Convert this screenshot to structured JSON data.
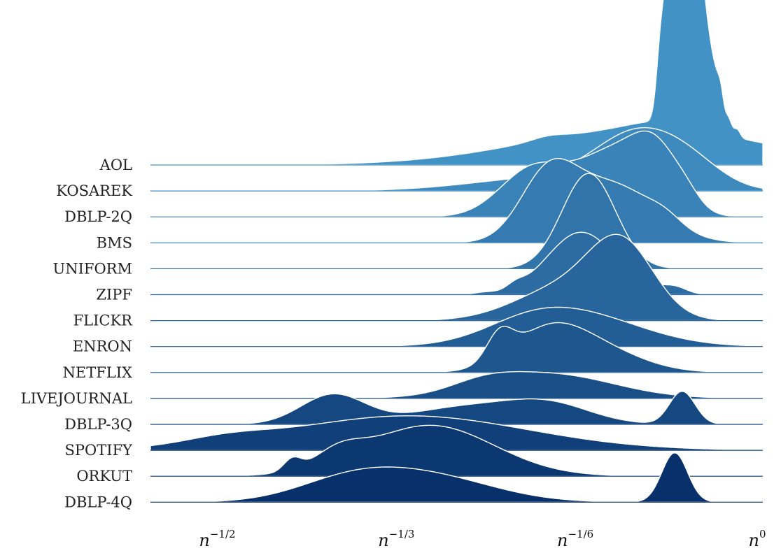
{
  "chart_data": {
    "type": "area",
    "title": "",
    "xlabel": "",
    "ylabel": "",
    "x_scale": "log",
    "xlim": [
      "n^-0.57",
      "n^0"
    ],
    "x_ticks": [
      {
        "base": "n",
        "exp": "−1/2",
        "value": -0.5
      },
      {
        "base": "n",
        "exp": "−1/3",
        "value": -0.3333
      },
      {
        "base": "n",
        "exp": "−1/6",
        "value": -0.1667
      },
      {
        "base": "n",
        "exp": "0",
        "value": 0
      }
    ],
    "grid": false,
    "legend": "none",
    "color_light": "#4292c6",
    "color_dark": "#08306b",
    "series": [
      {
        "name": "AOL",
        "peaks": [
          [
            -0.11,
            -0.11,
            0.22
          ],
          [
            -0.095,
            0.004,
            0.45
          ],
          [
            -0.088,
            0.004,
            0.7
          ],
          [
            -0.081,
            0.004,
            0.55
          ],
          [
            -0.074,
            0.004,
            0.9
          ],
          [
            -0.069,
            0.004,
            1.0
          ],
          [
            -0.063,
            0.004,
            0.75
          ],
          [
            -0.061,
            0.006,
            0.85
          ],
          [
            -0.052,
            0.004,
            0.35
          ],
          [
            -0.045,
            0.004,
            0.3
          ],
          [
            -0.039,
            0.003,
            0.2
          ],
          [
            -0.032,
            0.003,
            0.1
          ],
          [
            -0.024,
            0.003,
            0.05
          ],
          [
            -0.2,
            0.015,
            0.02
          ],
          [
            -0.09,
            0.03,
            0.05
          ]
        ]
      },
      {
        "name": "KOSAREK",
        "peaks": [
          [
            -0.115,
            0.04,
            0.32
          ],
          [
            -0.065,
            0.03,
            0.1
          ],
          [
            -0.2,
            0.07,
            0.08
          ]
        ]
      },
      {
        "name": "DBLP-2Q",
        "peaks": [
          [
            -0.215,
            0.03,
            0.28
          ],
          [
            -0.14,
            0.035,
            0.38
          ],
          [
            -0.098,
            0.022,
            0.3
          ],
          [
            -0.07,
            0.012,
            0.05
          ]
        ]
      },
      {
        "name": "BMS",
        "peaks": [
          [
            -0.2,
            0.026,
            0.38
          ],
          [
            -0.14,
            0.04,
            0.35
          ],
          [
            -0.09,
            0.015,
            0.05
          ]
        ]
      },
      {
        "name": "UNIFORM",
        "peaks": [
          [
            -0.162,
            0.025,
            0.58
          ]
        ]
      },
      {
        "name": "ZIPF",
        "peaks": [
          [
            -0.169,
            0.032,
            0.38
          ],
          [
            -0.23,
            0.008,
            0.03
          ],
          [
            -0.26,
            0.01,
            0.01
          ],
          [
            -0.09,
            0.015,
            0.03
          ],
          [
            -0.08,
            0.01,
            0.02
          ]
        ]
      },
      {
        "name": "FLICKR",
        "peaks": [
          [
            -0.131,
            0.03,
            0.42
          ],
          [
            -0.185,
            0.045,
            0.2
          ]
        ]
      },
      {
        "name": "ENRON",
        "peaks": [
          [
            -0.175,
            0.06,
            0.2
          ],
          [
            -0.22,
            0.04,
            0.06
          ]
        ]
      },
      {
        "name": "NETFLIX",
        "peaks": [
          [
            -0.245,
            0.012,
            0.16
          ],
          [
            -0.2,
            0.035,
            0.24
          ],
          [
            -0.15,
            0.04,
            0.12
          ]
        ]
      },
      {
        "name": "LIVEJOURNAL",
        "peaks": [
          [
            -0.2,
            0.06,
            0.15
          ],
          [
            -0.26,
            0.03,
            0.05
          ]
        ]
      },
      {
        "name": "DBLP-3Q",
        "peaks": [
          [
            -0.4,
            0.03,
            0.18
          ],
          [
            -0.28,
            0.05,
            0.1
          ],
          [
            -0.2,
            0.04,
            0.12
          ],
          [
            -0.075,
            0.012,
            0.2
          ]
        ]
      },
      {
        "name": "SPOTIFY",
        "peaks": [
          [
            -0.33,
            0.11,
            0.21
          ],
          [
            -0.5,
            0.04,
            0.04
          ]
        ]
      },
      {
        "name": "ORKUT",
        "peaks": [
          [
            -0.438,
            0.008,
            0.07
          ],
          [
            -0.395,
            0.022,
            0.09
          ],
          [
            -0.31,
            0.06,
            0.31
          ]
        ]
      },
      {
        "name": "DBLP-4Q",
        "peaks": [
          [
            -0.385,
            0.05,
            0.12
          ],
          [
            -0.31,
            0.06,
            0.15
          ],
          [
            -0.082,
            0.012,
            0.3
          ]
        ]
      }
    ]
  }
}
